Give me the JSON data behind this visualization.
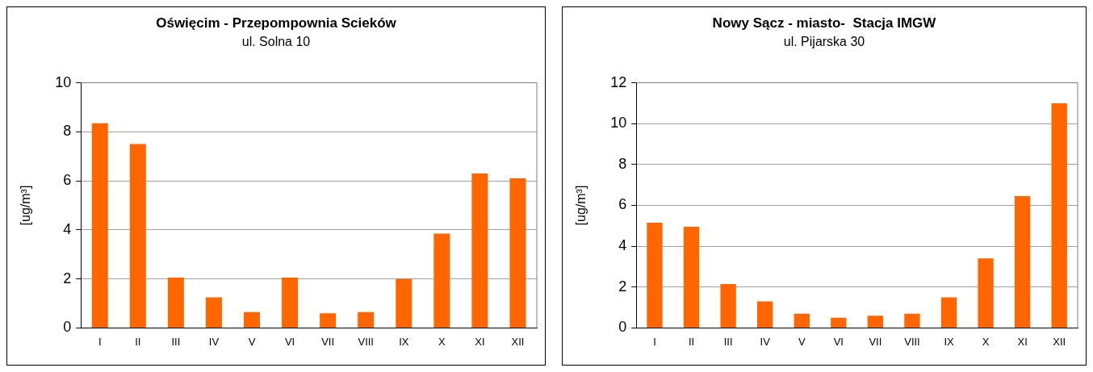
{
  "chart_data": [
    {
      "type": "bar",
      "title": "Oświęcim - Przepompownia Scieków",
      "subtitle": "ul. Solna 10",
      "ylabel": "[ug/m³]",
      "categories": [
        "I",
        "II",
        "III",
        "IV",
        "V",
        "VI",
        "VII",
        "VIII",
        "IX",
        "X",
        "XI",
        "XII"
      ],
      "values": [
        8.35,
        7.5,
        2.05,
        1.25,
        0.65,
        2.05,
        0.6,
        0.65,
        2.0,
        3.85,
        6.3,
        6.1
      ],
      "color": "#ff6600",
      "ylim": [
        0,
        10
      ],
      "yticks": [
        0,
        2,
        4,
        6,
        8,
        10
      ],
      "grid": "y"
    },
    {
      "type": "bar",
      "title": "Nowy Sącz - miasto-  Stacja IMGW",
      "subtitle": "ul. Pijarska 30",
      "ylabel": "[ug/m³]",
      "categories": [
        "I",
        "II",
        "III",
        "IV",
        "V",
        "VI",
        "VII",
        "VIII",
        "IX",
        "X",
        "XI",
        "XII"
      ],
      "values": [
        5.15,
        4.95,
        2.15,
        1.3,
        0.7,
        0.5,
        0.6,
        0.7,
        1.5,
        3.4,
        6.45,
        11.0
      ],
      "color": "#ff6600",
      "ylim": [
        0,
        12
      ],
      "yticks": [
        0,
        2,
        4,
        6,
        8,
        10,
        12
      ],
      "grid": "y"
    }
  ]
}
